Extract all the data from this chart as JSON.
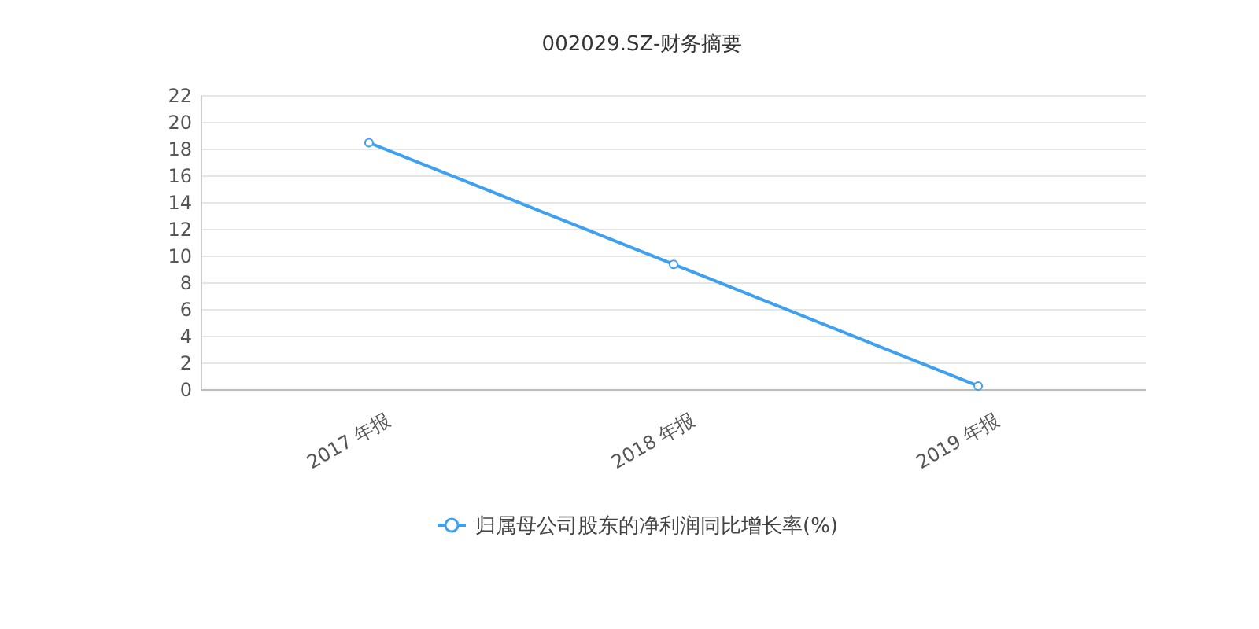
{
  "chart_data": {
    "type": "line",
    "title": "002029.SZ-财务摘要",
    "categories": [
      "2017 年报",
      "2018 年报",
      "2019 年报"
    ],
    "series": [
      {
        "name": "归属母公司股东的净利润同比增长率(%)",
        "color": "#3fa0f0",
        "values": [
          18.5,
          9.4,
          0.3
        ]
      }
    ],
    "ylim": [
      0,
      22
    ],
    "yticks": [
      0,
      2,
      4,
      6,
      8,
      10,
      12,
      14,
      16,
      18,
      20,
      22
    ],
    "grid": "y",
    "legend": "bottom",
    "marker": "circle",
    "line_style": "solid"
  }
}
